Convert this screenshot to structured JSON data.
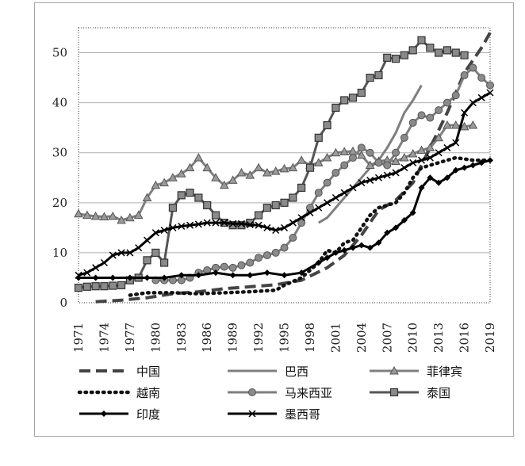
{
  "chart_data": {
    "type": "line",
    "title": "",
    "xlabel": "",
    "ylabel": "",
    "xlim": [
      1971,
      2019
    ],
    "ylim": [
      0,
      55
    ],
    "yticks": [
      0,
      10,
      20,
      30,
      40,
      50
    ],
    "xticks": [
      1971,
      1974,
      1977,
      1980,
      1983,
      1986,
      1989,
      1992,
      1995,
      1998,
      2001,
      2004,
      2007,
      2010,
      2013,
      2016,
      2019
    ],
    "grid": "horizontal",
    "legend_position": "bottom",
    "series": [
      {
        "name": "中国",
        "style": "dash",
        "marker": "none",
        "color": "#444444",
        "points": [
          [
            1973,
            0.2
          ],
          [
            1976,
            0.5
          ],
          [
            1979,
            1.0
          ],
          [
            1982,
            1.8
          ],
          [
            1985,
            2.2
          ],
          [
            1988,
            2.8
          ],
          [
            1991,
            3.2
          ],
          [
            1994,
            3.6
          ],
          [
            1997,
            4.5
          ],
          [
            2000,
            7.0
          ],
          [
            2002,
            9.5
          ],
          [
            2004,
            13.5
          ],
          [
            2006,
            18.5
          ],
          [
            2008,
            20.5
          ],
          [
            2010,
            24.0
          ],
          [
            2012,
            31.0
          ],
          [
            2014,
            38.0
          ],
          [
            2016,
            46.0
          ],
          [
            2018,
            51.0
          ],
          [
            2019,
            54.0
          ]
        ]
      },
      {
        "name": "巴西",
        "style": "solid",
        "marker": "none",
        "color": "#7f7f7f",
        "points": [
          [
            1999,
            16.0
          ],
          [
            2000,
            17.0
          ],
          [
            2001,
            19.0
          ],
          [
            2002,
            21.0
          ],
          [
            2003,
            23.0
          ],
          [
            2004,
            25.0
          ],
          [
            2005,
            27.0
          ],
          [
            2006,
            28.5
          ],
          [
            2007,
            31.0
          ],
          [
            2008,
            34.0
          ],
          [
            2009,
            38.0
          ],
          [
            2010,
            40.5
          ],
          [
            2011,
            43.5
          ]
        ]
      },
      {
        "name": "菲律宾",
        "style": "solid",
        "marker": "triangle",
        "color": "#7f7f7f",
        "points": [
          [
            1971,
            17.8
          ],
          [
            1972,
            17.5
          ],
          [
            1973,
            17.3
          ],
          [
            1974,
            17.2
          ],
          [
            1975,
            17.3
          ],
          [
            1976,
            16.5
          ],
          [
            1977,
            17.0
          ],
          [
            1978,
            17.5
          ],
          [
            1979,
            21.0
          ],
          [
            1980,
            23.5
          ],
          [
            1981,
            24.0
          ],
          [
            1982,
            25.0
          ],
          [
            1983,
            25.8
          ],
          [
            1984,
            27.0
          ],
          [
            1985,
            29.0
          ],
          [
            1986,
            27.0
          ],
          [
            1987,
            25.0
          ],
          [
            1988,
            23.5
          ],
          [
            1989,
            24.5
          ],
          [
            1990,
            26.0
          ],
          [
            1991,
            25.5
          ],
          [
            1992,
            27.0
          ],
          [
            1993,
            26.0
          ],
          [
            1994,
            26.3
          ],
          [
            1995,
            26.8
          ],
          [
            1996,
            27.0
          ],
          [
            1997,
            28.5
          ],
          [
            1998,
            27.5
          ],
          [
            1999,
            28.0
          ],
          [
            2000,
            29.0
          ],
          [
            2001,
            30.0
          ],
          [
            2002,
            30.2
          ],
          [
            2003,
            30.3
          ],
          [
            2004,
            29.5
          ],
          [
            2005,
            27.5
          ],
          [
            2006,
            28.3
          ],
          [
            2007,
            28.5
          ],
          [
            2008,
            28.3
          ],
          [
            2009,
            29.0
          ],
          [
            2010,
            29.8
          ],
          [
            2011,
            30.5
          ],
          [
            2012,
            31.0
          ],
          [
            2013,
            33.0
          ],
          [
            2014,
            35.5
          ],
          [
            2015,
            35.5
          ],
          [
            2016,
            35.2
          ],
          [
            2017,
            35.5
          ]
        ]
      },
      {
        "name": "越南",
        "style": "dot",
        "marker": "none",
        "color": "#111111",
        "points": [
          [
            1977,
            1.5
          ],
          [
            1979,
            2.0
          ],
          [
            1982,
            2.0
          ],
          [
            1985,
            1.8
          ],
          [
            1988,
            2.0
          ],
          [
            1991,
            2.2
          ],
          [
            1994,
            2.5
          ],
          [
            1995,
            3.5
          ],
          [
            1997,
            5.0
          ],
          [
            1999,
            8.0
          ],
          [
            2000,
            10.5
          ],
          [
            2001,
            10.0
          ],
          [
            2002,
            12.0
          ],
          [
            2003,
            12.5
          ],
          [
            2004,
            15.0
          ],
          [
            2005,
            17.5
          ],
          [
            2006,
            19.0
          ],
          [
            2007,
            19.5
          ],
          [
            2008,
            20.0
          ],
          [
            2009,
            22.0
          ],
          [
            2010,
            25.0
          ],
          [
            2011,
            27.0
          ],
          [
            2013,
            28.0
          ],
          [
            2015,
            29.0
          ],
          [
            2017,
            28.5
          ],
          [
            2019,
            28.5
          ]
        ]
      },
      {
        "name": "马来西亚",
        "style": "solid",
        "marker": "circle",
        "color": "#7f7f7f",
        "points": [
          [
            1980,
            4.5
          ],
          [
            1981,
            4.5
          ],
          [
            1982,
            4.5
          ],
          [
            1983,
            4.5
          ],
          [
            1984,
            5.0
          ],
          [
            1985,
            6.0
          ],
          [
            1986,
            6.5
          ],
          [
            1987,
            7.0
          ],
          [
            1988,
            7.2
          ],
          [
            1989,
            7.0
          ],
          [
            1990,
            7.5
          ],
          [
            1991,
            8.0
          ],
          [
            1992,
            9.0
          ],
          [
            1993,
            9.5
          ],
          [
            1994,
            10.0
          ],
          [
            1995,
            11.0
          ],
          [
            1996,
            13.0
          ],
          [
            1997,
            16.0
          ],
          [
            1998,
            19.0
          ],
          [
            1999,
            22.0
          ],
          [
            2000,
            24.0
          ],
          [
            2001,
            26.0
          ],
          [
            2002,
            27.5
          ],
          [
            2003,
            29.0
          ],
          [
            2004,
            31.0
          ],
          [
            2005,
            30.0
          ],
          [
            2006,
            28.0
          ],
          [
            2007,
            27.5
          ],
          [
            2008,
            30.0
          ],
          [
            2009,
            33.0
          ],
          [
            2010,
            36.0
          ],
          [
            2011,
            37.5
          ],
          [
            2012,
            37.0
          ],
          [
            2013,
            38.5
          ],
          [
            2014,
            40.0
          ],
          [
            2015,
            41.5
          ],
          [
            2016,
            45.5
          ],
          [
            2017,
            47.0
          ],
          [
            2018,
            45.0
          ],
          [
            2019,
            43.5
          ]
        ]
      },
      {
        "name": "泰国",
        "style": "solid",
        "marker": "square",
        "color": "#555555",
        "points": [
          [
            1971,
            3.0
          ],
          [
            1972,
            3.2
          ],
          [
            1973,
            3.3
          ],
          [
            1974,
            3.3
          ],
          [
            1975,
            3.4
          ],
          [
            1976,
            3.5
          ],
          [
            1977,
            4.5
          ],
          [
            1978,
            5.0
          ],
          [
            1979,
            8.5
          ],
          [
            1980,
            10.0
          ],
          [
            1981,
            8.0
          ],
          [
            1982,
            19.0
          ],
          [
            1983,
            21.5
          ],
          [
            1984,
            22.0
          ],
          [
            1985,
            21.0
          ],
          [
            1986,
            19.5
          ],
          [
            1987,
            17.5
          ],
          [
            1988,
            16.0
          ],
          [
            1989,
            15.5
          ],
          [
            1990,
            15.5
          ],
          [
            1991,
            16.0
          ],
          [
            1992,
            17.5
          ],
          [
            1993,
            19.0
          ],
          [
            1994,
            19.5
          ],
          [
            1995,
            20.0
          ],
          [
            1996,
            21.0
          ],
          [
            1997,
            23.0
          ],
          [
            1998,
            27.0
          ],
          [
            1999,
            33.0
          ],
          [
            2000,
            35.5
          ],
          [
            2001,
            39.0
          ],
          [
            2002,
            40.5
          ],
          [
            2003,
            41.0
          ],
          [
            2004,
            42.0
          ],
          [
            2005,
            45.0
          ],
          [
            2006,
            45.5
          ],
          [
            2007,
            49.0
          ],
          [
            2008,
            48.8
          ],
          [
            2009,
            49.5
          ],
          [
            2010,
            50.5
          ],
          [
            2011,
            52.5
          ],
          [
            2012,
            51.0
          ],
          [
            2013,
            50.0
          ],
          [
            2014,
            50.5
          ],
          [
            2015,
            50.0
          ],
          [
            2016,
            49.5
          ]
        ]
      },
      {
        "name": "印度",
        "style": "solid",
        "marker": "diamond",
        "color": "#000000",
        "points": [
          [
            1971,
            5.0
          ],
          [
            1973,
            5.0
          ],
          [
            1975,
            5.0
          ],
          [
            1977,
            5.0
          ],
          [
            1979,
            5.0
          ],
          [
            1981,
            5.0
          ],
          [
            1983,
            5.5
          ],
          [
            1985,
            5.5
          ],
          [
            1987,
            6.0
          ],
          [
            1989,
            5.5
          ],
          [
            1991,
            5.5
          ],
          [
            1993,
            6.0
          ],
          [
            1995,
            5.5
          ],
          [
            1997,
            6.0
          ],
          [
            1999,
            8.0
          ],
          [
            2000,
            9.0
          ],
          [
            2001,
            10.0
          ],
          [
            2002,
            10.5
          ],
          [
            2003,
            11.0
          ],
          [
            2004,
            11.5
          ],
          [
            2005,
            11.0
          ],
          [
            2006,
            12.0
          ],
          [
            2007,
            14.0
          ],
          [
            2008,
            15.0
          ],
          [
            2009,
            16.5
          ],
          [
            2010,
            18.0
          ],
          [
            2011,
            23.0
          ],
          [
            2012,
            25.0
          ],
          [
            2013,
            24.0
          ],
          [
            2014,
            25.0
          ],
          [
            2015,
            26.5
          ],
          [
            2016,
            27.0
          ],
          [
            2017,
            27.5
          ],
          [
            2018,
            28.0
          ],
          [
            2019,
            28.5
          ]
        ]
      },
      {
        "name": "墨西哥",
        "style": "solid",
        "marker": "x",
        "color": "#000000",
        "points": [
          [
            1971,
            5.5
          ],
          [
            1972,
            6.0
          ],
          [
            1973,
            7.0
          ],
          [
            1974,
            8.0
          ],
          [
            1975,
            9.5
          ],
          [
            1976,
            10.0
          ],
          [
            1977,
            10.0
          ],
          [
            1978,
            11.0
          ],
          [
            1979,
            12.5
          ],
          [
            1980,
            14.0
          ],
          [
            1981,
            14.5
          ],
          [
            1982,
            15.0
          ],
          [
            1983,
            15.3
          ],
          [
            1984,
            15.5
          ],
          [
            1985,
            15.7
          ],
          [
            1986,
            16.0
          ],
          [
            1987,
            16.0
          ],
          [
            1988,
            16.0
          ],
          [
            1989,
            15.8
          ],
          [
            1990,
            15.8
          ],
          [
            1991,
            15.6
          ],
          [
            1992,
            15.5
          ],
          [
            1993,
            15.0
          ],
          [
            1994,
            14.5
          ],
          [
            1995,
            15.0
          ],
          [
            1996,
            16.0
          ],
          [
            1997,
            17.0
          ],
          [
            1998,
            18.0
          ],
          [
            1999,
            19.0
          ],
          [
            2000,
            20.0
          ],
          [
            2001,
            21.0
          ],
          [
            2002,
            22.0
          ],
          [
            2003,
            23.0
          ],
          [
            2004,
            24.0
          ],
          [
            2005,
            24.5
          ],
          [
            2006,
            25.0
          ],
          [
            2007,
            25.5
          ],
          [
            2008,
            26.0
          ],
          [
            2009,
            27.0
          ],
          [
            2010,
            28.0
          ],
          [
            2011,
            28.5
          ],
          [
            2012,
            29.0
          ],
          [
            2013,
            30.0
          ],
          [
            2014,
            31.0
          ],
          [
            2015,
            32.0
          ],
          [
            2016,
            38.0
          ],
          [
            2017,
            40.0
          ],
          [
            2018,
            41.0
          ],
          [
            2019,
            42.0
          ]
        ]
      }
    ]
  }
}
